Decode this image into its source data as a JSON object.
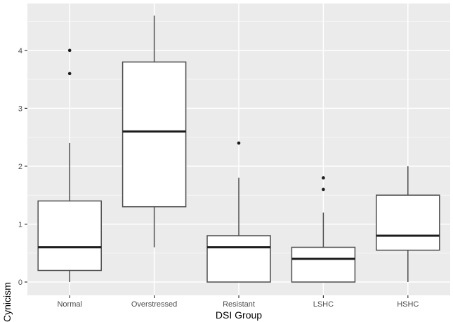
{
  "chart_data": {
    "type": "boxplot",
    "title": "",
    "xlabel": "DSI Group",
    "ylabel": "Cynicism",
    "categories": [
      "Normal",
      "Overstressed",
      "Resistant",
      "LSHC",
      "HSHC"
    ],
    "groups": [
      {
        "label": "Normal",
        "whisker_low": 0.0,
        "q1": 0.2,
        "median": 0.6,
        "q3": 1.4,
        "whisker_high": 2.4,
        "outliers": [
          3.6,
          4.0
        ]
      },
      {
        "label": "Overstressed",
        "whisker_low": 0.6,
        "q1": 1.3,
        "median": 2.6,
        "q3": 3.8,
        "whisker_high": 4.6,
        "outliers": []
      },
      {
        "label": "Resistant",
        "whisker_low": 0.0,
        "q1": 0.0,
        "median": 0.6,
        "q3": 0.8,
        "whisker_high": 1.8,
        "outliers": [
          2.4
        ]
      },
      {
        "label": "LSHC",
        "whisker_low": 0.0,
        "q1": 0.0,
        "median": 0.4,
        "q3": 0.6,
        "whisker_high": 1.2,
        "outliers": [
          1.6,
          1.8
        ]
      },
      {
        "label": "HSHC",
        "whisker_low": 0.0,
        "q1": 0.55,
        "median": 0.8,
        "q3": 1.5,
        "whisker_high": 2.0,
        "outliers": []
      }
    ],
    "y_ticks": [
      0,
      1,
      2,
      3,
      4
    ],
    "y_minor_ticks": [
      0.5,
      1.5,
      2.5,
      3.5,
      4.5
    ],
    "ylim": [
      -0.23,
      4.81
    ],
    "grid": true,
    "legend": false,
    "style": {
      "panel_bg": "#EBEBEB",
      "grid_major": "#FFFFFF",
      "grid_minor": "#F6F6F6",
      "box_fill": "#FFFFFF",
      "box_stroke": "#4D4D4D",
      "median_stroke": "#1C1C1C",
      "whisker_stroke": "#4D4D4D",
      "outlier_color": "#1C1C1C",
      "tick_mark": "#333333",
      "axis_text": "#4D4D4D",
      "axis_title": "#000000"
    }
  }
}
